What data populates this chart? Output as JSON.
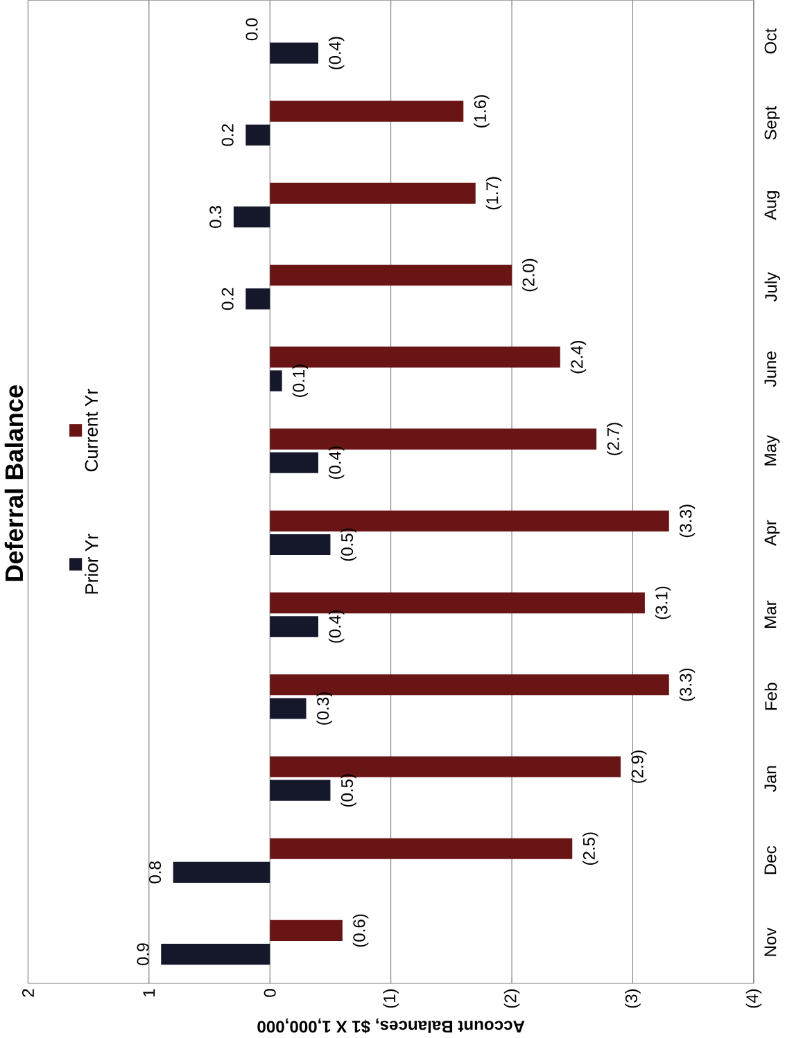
{
  "chart_data": {
    "type": "bar",
    "orientation": "horizontal",
    "title": "Deferral Balance",
    "xlabel": "Account Balances, $1 X 1,000,000",
    "categories": [
      "Oct",
      "Sept",
      "Aug",
      "July",
      "June",
      "May",
      "Apr",
      "Mar",
      "Feb",
      "Jan",
      "Dec",
      "Nov"
    ],
    "series": [
      {
        "name": "Prior Yr",
        "color": "#14182a",
        "values": [
          -0.4,
          0.2,
          0.3,
          0.2,
          -0.1,
          -0.4,
          -0.5,
          -0.4,
          -0.3,
          -0.5,
          0.8,
          0.9
        ],
        "value_labels": [
          "(0.4)",
          "0.2",
          "0.3",
          "0.2",
          "(0.1)",
          "(0.4)",
          "(0.5)",
          "(0.4)",
          "(0.3)",
          "(0.5)",
          "0.8",
          "0.9"
        ]
      },
      {
        "name": "Current Yr",
        "color": "#6a1515",
        "values": [
          0.0,
          -1.6,
          -1.7,
          -2.0,
          -2.4,
          -2.7,
          -3.3,
          -3.1,
          -3.3,
          -2.9,
          -2.5,
          -0.6
        ],
        "value_labels": [
          "0.0",
          "(1.6)",
          "(1.7)",
          "(2.0)",
          "(2.4)",
          "(2.7)",
          "(3.3)",
          "(3.1)",
          "(3.3)",
          "(2.9)",
          "(2.5)",
          "(0.6)"
        ]
      }
    ],
    "xlim": [
      2,
      -4
    ],
    "xticks": [
      {
        "value": 2,
        "label": "2"
      },
      {
        "value": 1,
        "label": "1"
      },
      {
        "value": 0,
        "label": "0"
      },
      {
        "value": -1,
        "label": "(1)"
      },
      {
        "value": -2,
        "label": "(2)"
      },
      {
        "value": -3,
        "label": "(3)"
      },
      {
        "value": -4,
        "label": "(4)"
      }
    ],
    "grid": "x",
    "legend": "left"
  }
}
